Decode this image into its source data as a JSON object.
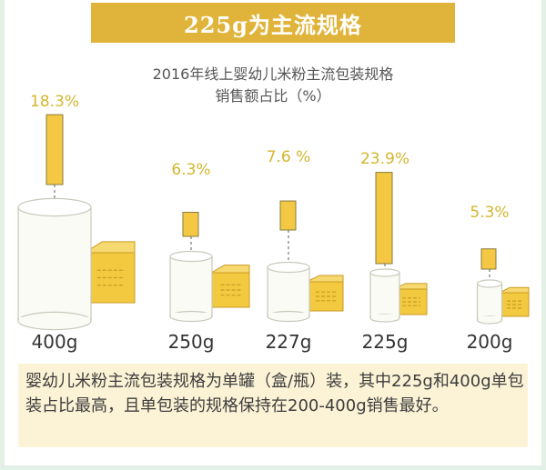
{
  "header": {
    "title": "225g为主流规格"
  },
  "chart_data": {
    "type": "bar",
    "title": "2016年线上婴幼儿米粉主流包装规格",
    "subtitle": "销售额占比（%）",
    "categories": [
      "400g",
      "250g",
      "227g",
      "225g",
      "200g"
    ],
    "values": [
      18.3,
      6.3,
      7.6,
      23.9,
      5.3
    ],
    "value_labels": [
      "18.3%",
      "6.3%",
      "7.6 %",
      "23.9%",
      "5.3%"
    ],
    "colors": {
      "bar": "#f4c842",
      "label": "#d4b62e",
      "box": "#f3c940",
      "can": "#fbfbf5",
      "accent": "#e0b43a"
    }
  },
  "note": {
    "text": "婴幼儿米粉主流包装规格为单罐（盒/瓶）装，其中225g和400g单包装占比最高，且单包装的规格保持在200-400g销售最好。"
  }
}
